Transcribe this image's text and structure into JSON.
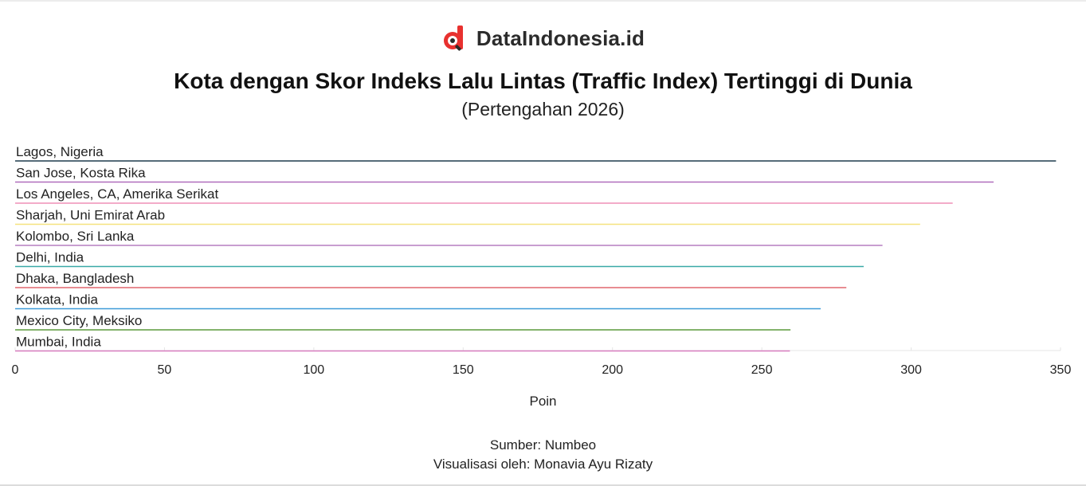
{
  "brand": {
    "name": "DataIndonesia.id",
    "colors": {
      "logo_red": "#e8312f",
      "logo_dark": "#2b2b2b"
    }
  },
  "header": {
    "title": "Kota dengan Skor Indeks Lalu Lintas (Traffic Index) Tertinggi di Dunia",
    "subtitle": "(Pertengahan 2026)"
  },
  "chart_data": {
    "type": "bar",
    "orientation": "horizontal",
    "categories": [
      "Lagos, Nigeria",
      "San Jose, Kosta Rika",
      "Los Angeles, CA, Amerika Serikat",
      "Sharjah, Uni Emirat Arab",
      "Kolombo, Sri Lanka",
      "Delhi, India",
      "Dhaka, Bangladesh",
      "Kolkata, India",
      "Mexico City, Meksiko",
      "Mumbai, India"
    ],
    "values": [
      348.5,
      327.6,
      313.9,
      303.0,
      290.4,
      284.1,
      278.3,
      269.7,
      259.6,
      259.4
    ],
    "colors": [
      "#1f3b4d",
      "#b06dbd",
      "#ef8fb7",
      "#f5e27e",
      "#b57ec1",
      "#3aa9a7",
      "#e0676f",
      "#3e9ad8",
      "#5b9a3c",
      "#d87dc0"
    ],
    "xlabel": "Poin",
    "xlim": [
      0,
      350
    ],
    "xticks": [
      0,
      50,
      100,
      150,
      200,
      250,
      300,
      350
    ],
    "grid": true
  },
  "footer": {
    "source": "Sumber: Numbeo",
    "credit": "Visualisasi oleh: Monavia Ayu Rizaty"
  }
}
